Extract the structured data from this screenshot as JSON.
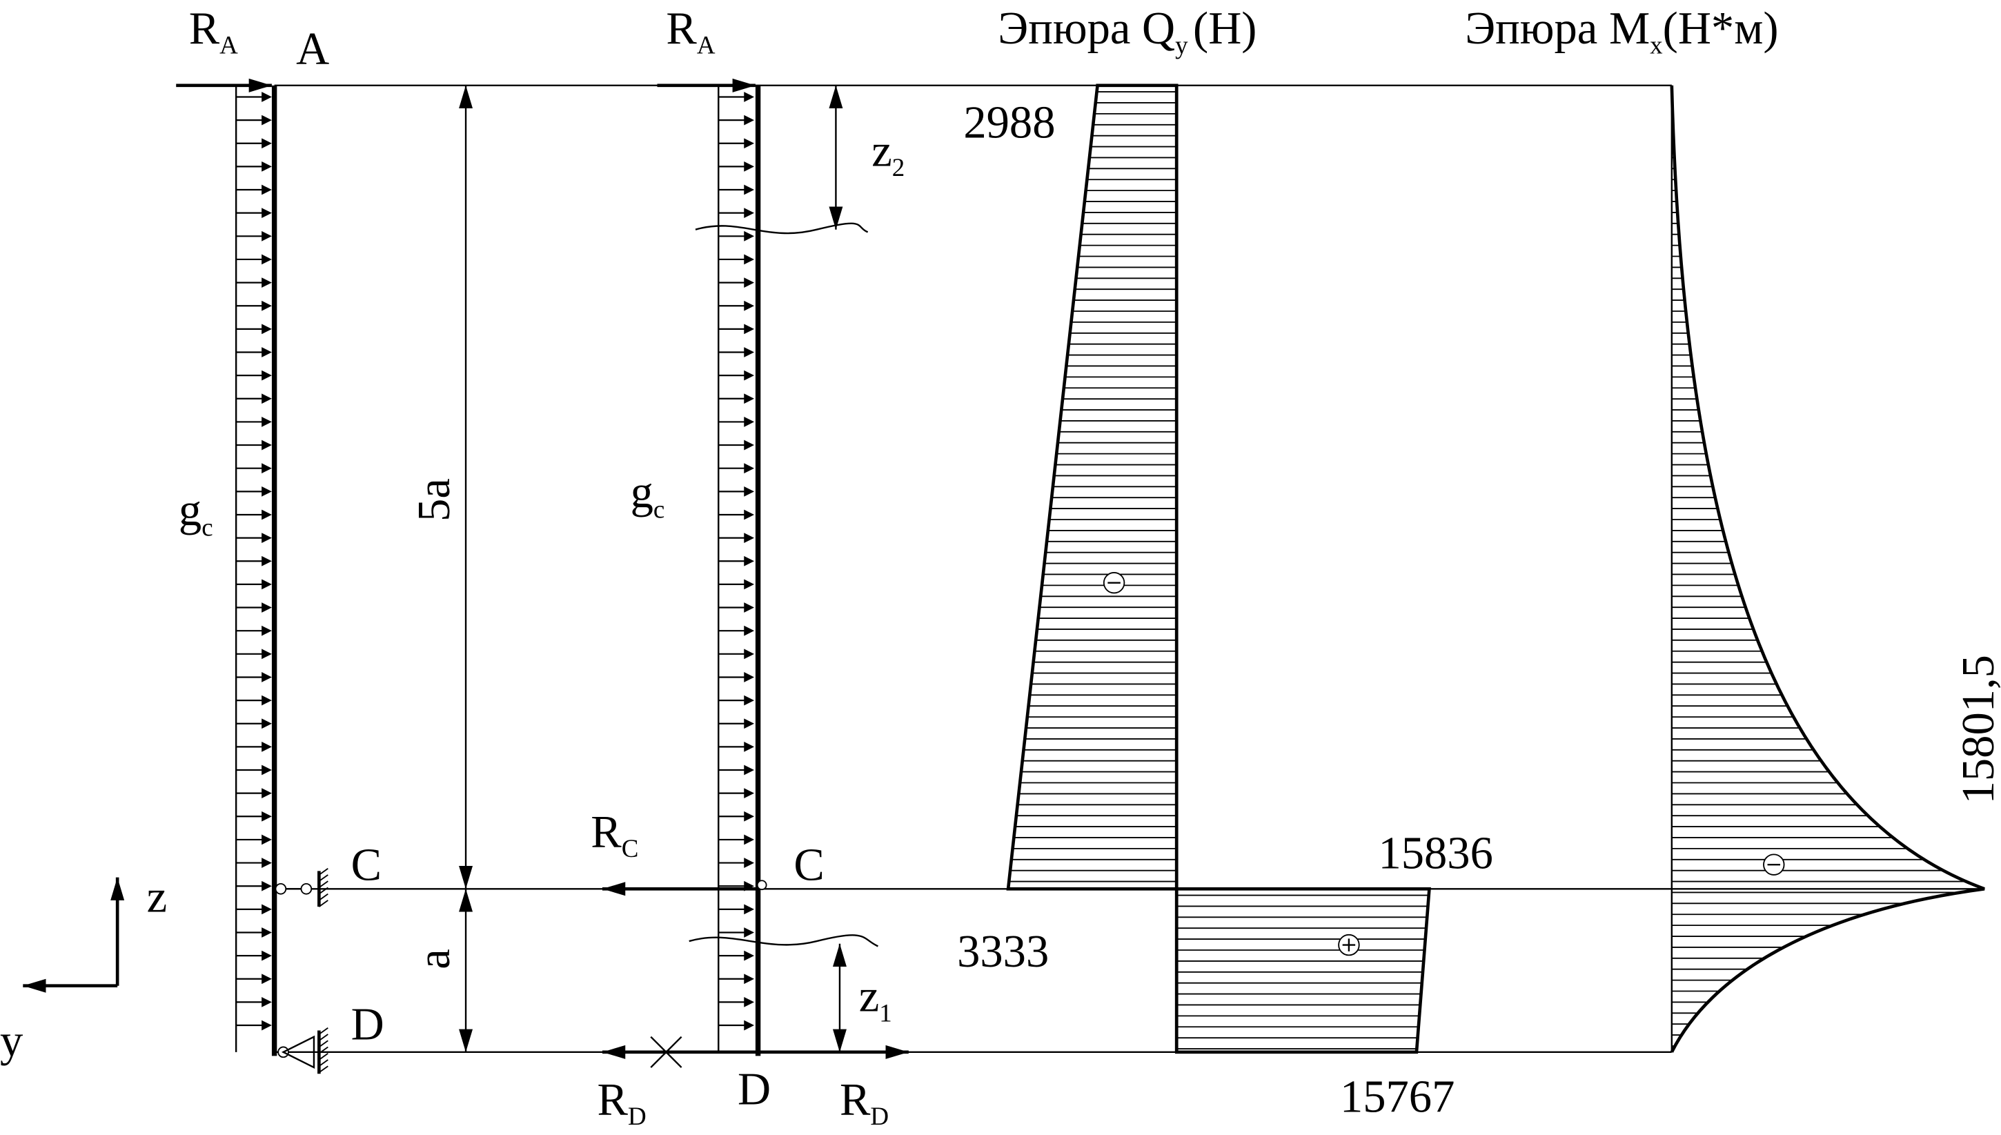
{
  "left_beam": {
    "reaction_a": {
      "main": "R",
      "sub": "A"
    },
    "point_a": "A",
    "load": {
      "main": "g",
      "sub": "c"
    },
    "point_c": "C",
    "point_d": "D",
    "length_5a": "5a",
    "length_a": "a"
  },
  "axes": {
    "z": "z",
    "y": "y"
  },
  "right_beam": {
    "reaction_a": {
      "main": "R",
      "sub": "A"
    },
    "z2": {
      "main": "z",
      "sub": "2"
    },
    "load": {
      "main": "g",
      "sub": "c"
    },
    "reaction_c": {
      "main": "R",
      "sub": "C"
    },
    "point_c": "C",
    "z1": {
      "main": "z",
      "sub": "1"
    },
    "reaction_d_left": {
      "main": "R",
      "sub": "D"
    },
    "point_d": "D",
    "reaction_d_right": {
      "main": "R",
      "sub": "D"
    }
  },
  "shear_diagram": {
    "title": {
      "prefix": "Эпюра Q",
      "sub": "y",
      "unit": "(Н)"
    },
    "labels": [
      "2988",
      "3333",
      "15836",
      "15767"
    ]
  },
  "moment_diagram": {
    "title": {
      "prefix": "Эпюра M",
      "sub": "x",
      "unit": "(Н*м)"
    },
    "labels": [
      "15801,5"
    ]
  }
}
